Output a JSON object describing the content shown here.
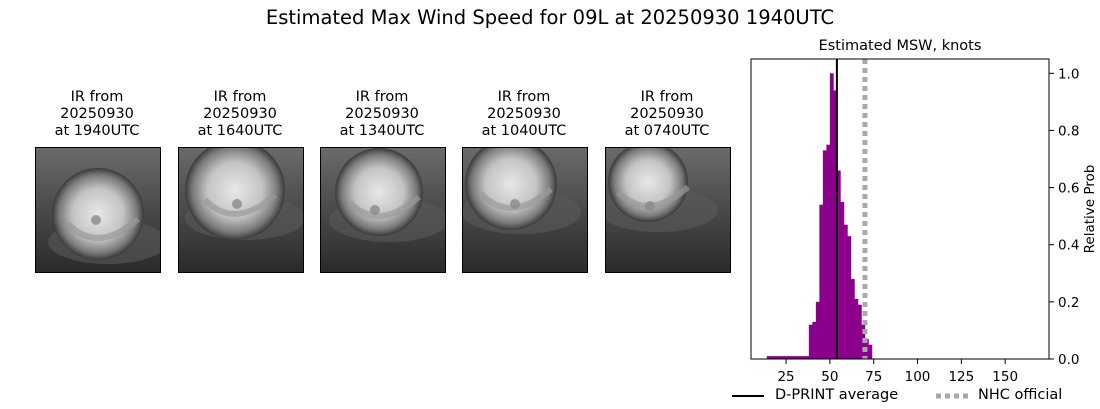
{
  "title": "Estimated Max Wind Speed for 09L at 20250930 1940UTC",
  "ir_panels": [
    {
      "line1": "IR from",
      "line2": "20250930",
      "line3": "at 1940UTC"
    },
    {
      "line1": "IR from",
      "line2": "20250930",
      "line3": "at 1640UTC"
    },
    {
      "line1": "IR from",
      "line2": "20250930",
      "line3": "at 1340UTC"
    },
    {
      "line1": "IR from",
      "line2": "20250930",
      "line3": "at 1040UTC"
    },
    {
      "line1": "IR from",
      "line2": "20250930",
      "line3": "at 0740UTC"
    }
  ],
  "legend": {
    "dprint": "D-PRINT average",
    "nhc": "NHC official"
  },
  "colors": {
    "bars": "#8b008b",
    "dprint_line": "#000000",
    "nhc_line": "#a9a9a9"
  },
  "chart_data": {
    "type": "bar",
    "title": "Estimated MSW, knots",
    "xlabel": "",
    "ylabel": "Relative Prob",
    "xlim": [
      5,
      175
    ],
    "ylim": [
      0,
      1.05
    ],
    "xticks": [
      25,
      50,
      75,
      100,
      125,
      150
    ],
    "yticks": [
      0.0,
      0.2,
      0.4,
      0.6,
      0.8,
      1.0
    ],
    "y_axis_side": "right",
    "bin_width": 2,
    "bins": [
      {
        "x": 15,
        "y": 0.01
      },
      {
        "x": 17,
        "y": 0.01
      },
      {
        "x": 19,
        "y": 0.01
      },
      {
        "x": 21,
        "y": 0.01
      },
      {
        "x": 23,
        "y": 0.01
      },
      {
        "x": 25,
        "y": 0.01
      },
      {
        "x": 27,
        "y": 0.01
      },
      {
        "x": 29,
        "y": 0.01
      },
      {
        "x": 31,
        "y": 0.01
      },
      {
        "x": 33,
        "y": 0.01
      },
      {
        "x": 35,
        "y": 0.01
      },
      {
        "x": 37,
        "y": 0.01
      },
      {
        "x": 39,
        "y": 0.12
      },
      {
        "x": 41,
        "y": 0.13
      },
      {
        "x": 43,
        "y": 0.2
      },
      {
        "x": 45,
        "y": 0.54
      },
      {
        "x": 47,
        "y": 0.73
      },
      {
        "x": 49,
        "y": 0.75
      },
      {
        "x": 51,
        "y": 1.0
      },
      {
        "x": 53,
        "y": 0.94
      },
      {
        "x": 55,
        "y": 0.66
      },
      {
        "x": 57,
        "y": 0.55
      },
      {
        "x": 59,
        "y": 0.47
      },
      {
        "x": 61,
        "y": 0.43
      },
      {
        "x": 63,
        "y": 0.28
      },
      {
        "x": 65,
        "y": 0.21
      },
      {
        "x": 67,
        "y": 0.19
      },
      {
        "x": 69,
        "y": 0.12
      },
      {
        "x": 71,
        "y": 0.07
      },
      {
        "x": 73,
        "y": 0.05
      }
    ],
    "series": [
      {
        "name": "D-PRINT average",
        "style": "solid",
        "x": 54
      },
      {
        "name": "NHC official",
        "style": "dotted",
        "x": 70
      }
    ],
    "legend_position": "bottom"
  }
}
